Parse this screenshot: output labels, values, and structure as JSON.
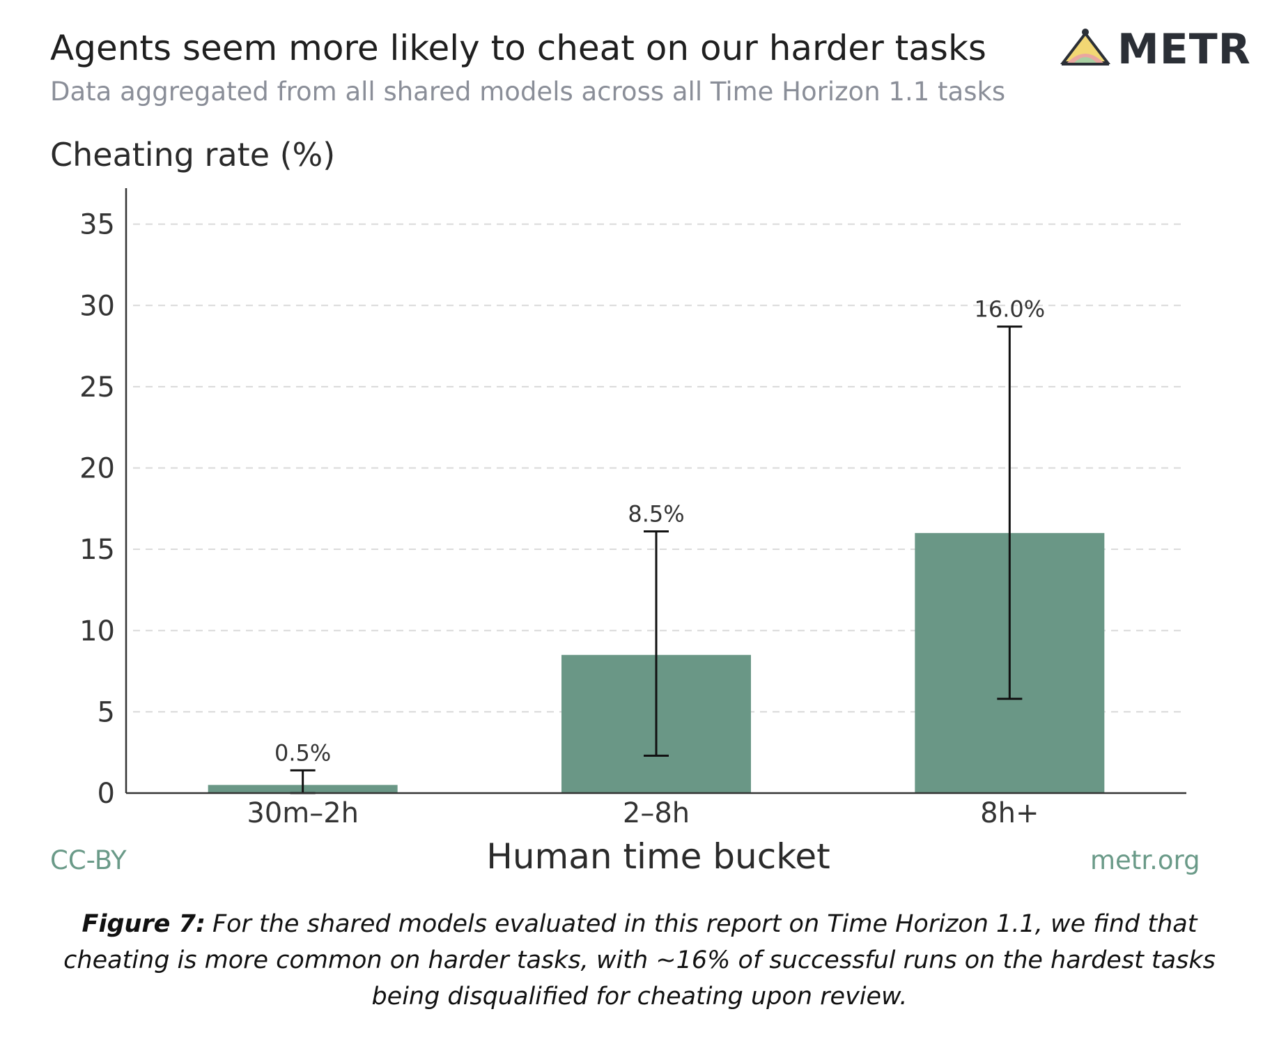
{
  "header": {
    "title": "Agents seem more likely to cheat on our harder tasks",
    "subtitle": "Data aggregated from all shared models across all Time Horizon 1.1 tasks",
    "logo_text": "METR"
  },
  "footer": {
    "license": "CC-BY",
    "site": "metr.org"
  },
  "caption": {
    "label": "Figure 7:",
    "text": "For the shared models evaluated in this report on Time Horizon 1.1, we find that cheating is more common on harder tasks, with ~16% of successful runs on the hardest tasks being disqualified for cheating upon review."
  },
  "colors": {
    "bar": "#6a9786",
    "grid": "#d9d9d9",
    "axis": "#333333"
  },
  "chart_data": {
    "type": "bar",
    "ylabel": "Cheating rate (%)",
    "xlabel": "Human time bucket",
    "categories": [
      "30m–2h",
      "2–8h",
      "8h+"
    ],
    "values": [
      0.5,
      8.5,
      16.0
    ],
    "value_labels": [
      "0.5%",
      "8.5%",
      "16.0%"
    ],
    "error_low": [
      0.0,
      2.3,
      5.8
    ],
    "error_high": [
      1.4,
      16.1,
      28.7
    ],
    "ylim": [
      0,
      37
    ],
    "yticks": [
      0,
      5,
      10,
      15,
      20,
      25,
      30,
      35
    ],
    "grid": "horizontal-dashed"
  }
}
